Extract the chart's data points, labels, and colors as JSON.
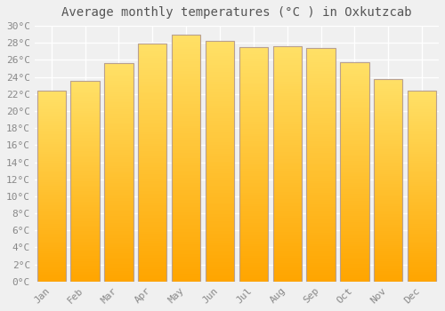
{
  "title": "Average monthly temperatures (°C ) in Oxkutzcab",
  "months": [
    "Jan",
    "Feb",
    "Mar",
    "Apr",
    "May",
    "Jun",
    "Jul",
    "Aug",
    "Sep",
    "Oct",
    "Nov",
    "Dec"
  ],
  "values": [
    22.4,
    23.5,
    25.6,
    27.9,
    29.0,
    28.2,
    27.5,
    27.6,
    27.4,
    25.7,
    23.8,
    22.4
  ],
  "bar_color_bottom": "#FFA500",
  "bar_color_top": "#FFE066",
  "bar_edge_color": "#B8A090",
  "ylim": [
    0,
    30
  ],
  "ytick_step": 2,
  "background_color": "#f0f0f0",
  "plot_bg_color": "#f0f0f0",
  "grid_color": "#ffffff",
  "title_fontsize": 10,
  "tick_fontsize": 8,
  "font_family": "monospace",
  "title_color": "#555555",
  "tick_color": "#888888"
}
